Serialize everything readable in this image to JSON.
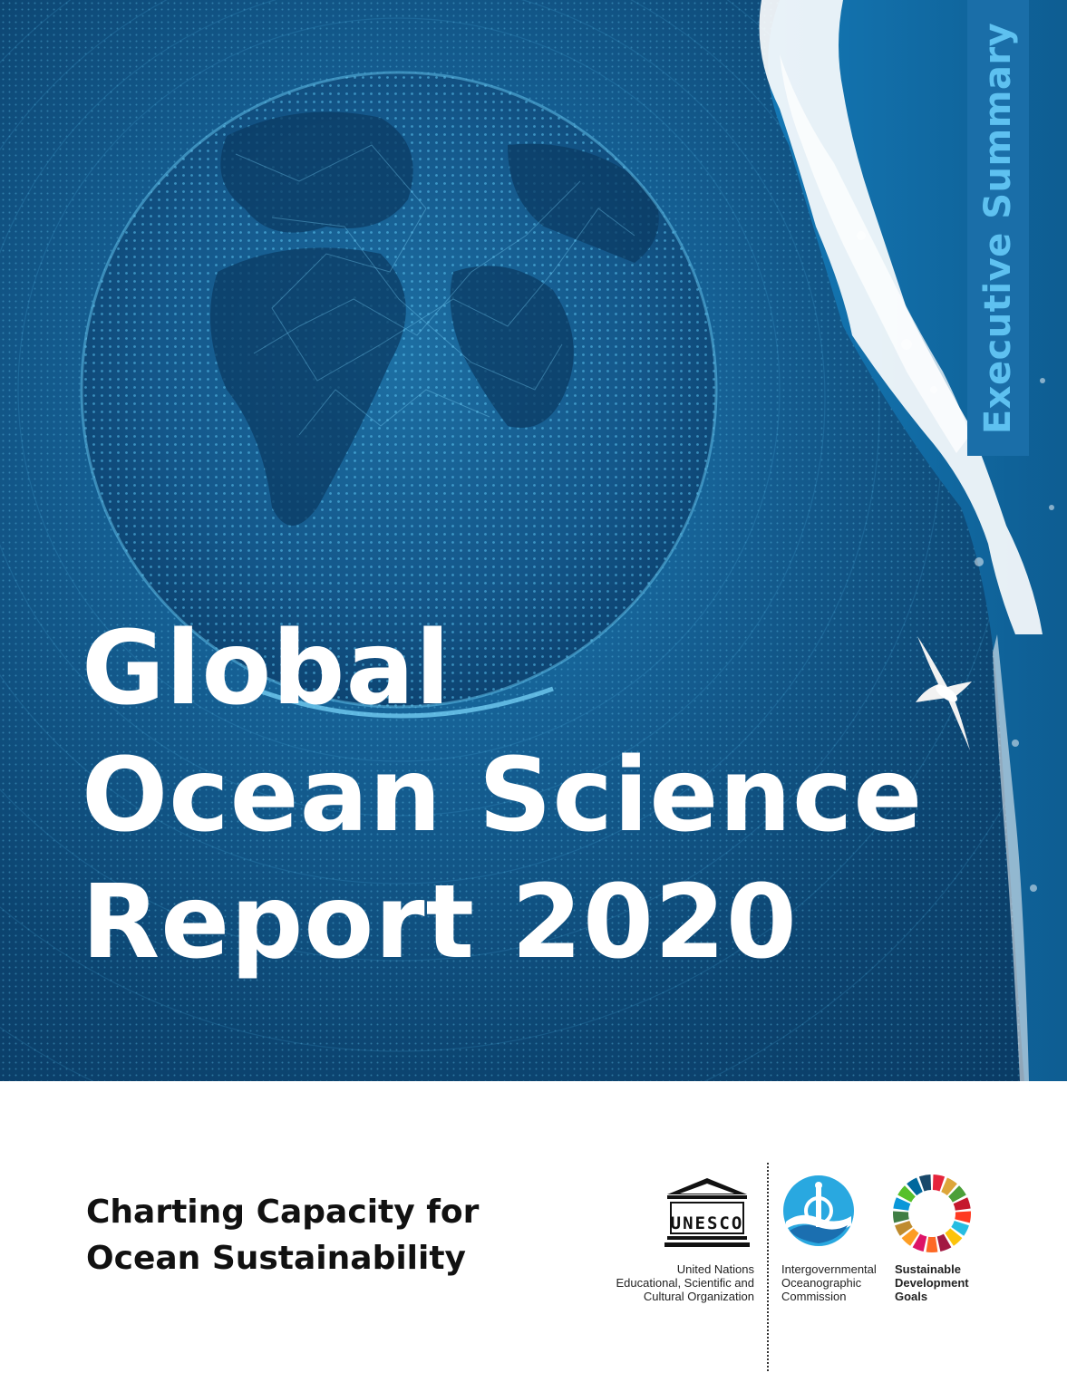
{
  "cover": {
    "side_tab": "Executive Summary",
    "title_lines": [
      "Global",
      "Ocean Science",
      "Report 2020"
    ],
    "subtitle_lines": [
      "Charting Capacity for",
      "Ocean Sustainability"
    ]
  },
  "logos": {
    "unesco": {
      "wordmark": "UNESCO",
      "caption_lines": [
        "United Nations",
        "Educational, Scientific and",
        "Cultural Organization"
      ]
    },
    "ioc": {
      "caption_lines": [
        "Intergovernmental",
        "Oceanographic",
        "Commission"
      ]
    },
    "sdg": {
      "caption_lines": [
        "Sustainable",
        "Development",
        "Goals"
      ],
      "wheel_colors": [
        "#e5243b",
        "#dda63a",
        "#4c9f38",
        "#c5192d",
        "#ff3a21",
        "#26bde2",
        "#fcc30b",
        "#a21942",
        "#fd6925",
        "#dd1367",
        "#fd9d24",
        "#bf8b2e",
        "#3f7e44",
        "#0a97d9",
        "#56c02b",
        "#00689d",
        "#19486a"
      ]
    }
  },
  "colors": {
    "hero_blue": "#155f93",
    "side_tab_bg": "#1a6ea8",
    "side_tab_text": "#5ec1f0",
    "title_text": "#ffffff",
    "subtitle_text": "#111111"
  }
}
